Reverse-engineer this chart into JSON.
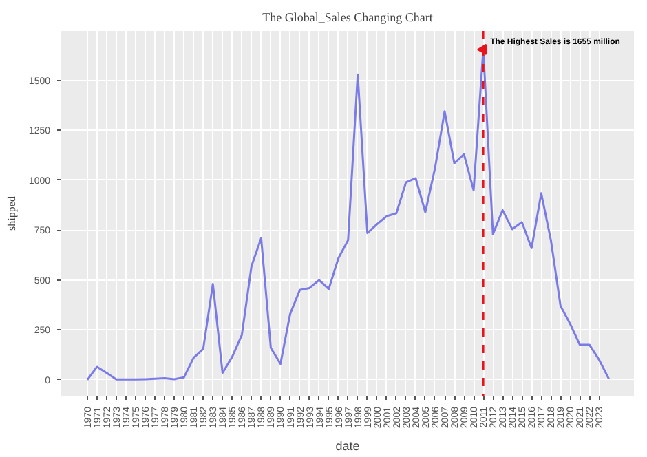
{
  "chart_data": {
    "type": "line",
    "title": "The Global_Sales Changing Chart",
    "xlabel": "date",
    "ylabel": "shipped",
    "x": [
      1970,
      1971,
      1972,
      1973,
      1974,
      1975,
      1976,
      1977,
      1978,
      1979,
      1980,
      1981,
      1982,
      1983,
      1984,
      1985,
      1986,
      1987,
      1988,
      1989,
      1990,
      1991,
      1992,
      1993,
      1994,
      1995,
      1996,
      1997,
      1998,
      1999,
      2000,
      2001,
      2002,
      2003,
      2004,
      2005,
      2006,
      2007,
      2008,
      2009,
      2010,
      2011,
      2012,
      2013,
      2014,
      2015,
      2016,
      2017,
      2018,
      2019,
      2020,
      2021,
      2022,
      2023,
      2024
    ],
    "series": [
      {
        "color": "#7b7be6",
        "values": [
          0,
          65,
          35,
          2,
          2,
          2,
          3,
          5,
          8,
          3,
          12,
          110,
          155,
          480,
          35,
          115,
          225,
          570,
          710,
          160,
          80,
          330,
          450,
          460,
          500,
          455,
          610,
          700,
          1530,
          735,
          780,
          820,
          835,
          990,
          1010,
          840,
          1060,
          1345,
          1085,
          1130,
          950,
          1655,
          730,
          850,
          755,
          790,
          660,
          935,
          700,
          370,
          280,
          175,
          175,
          100,
          5
        ]
      }
    ],
    "xlim": [
      1967.3,
      2026.6
    ],
    "ylim": [
      -80,
      1748
    ],
    "xticks": [
      1970,
      1971,
      1972,
      1973,
      1974,
      1975,
      1976,
      1977,
      1978,
      1979,
      1980,
      1981,
      1982,
      1983,
      1984,
      1985,
      1986,
      1987,
      1988,
      1989,
      1990,
      1991,
      1992,
      1993,
      1994,
      1995,
      1996,
      1997,
      1998,
      1999,
      2000,
      2001,
      2002,
      2003,
      2004,
      2005,
      2006,
      2007,
      2008,
      2009,
      2010,
      2011,
      2012,
      2013,
      2014,
      2015,
      2016,
      2017,
      2018,
      2019,
      2020,
      2021,
      2022,
      2023
    ],
    "yticks": [
      0,
      250,
      500,
      750,
      1000,
      1250,
      1500
    ],
    "ref_lines": [
      {
        "axis": "x",
        "value": 2011,
        "color": "#e8141c",
        "line_style": "dashed"
      }
    ],
    "annotations": [
      {
        "text": "The Highest Sales is 1655 million",
        "x": 2011,
        "y": 1655
      }
    ],
    "grid": true,
    "line_style": "solid",
    "marker": "none"
  }
}
